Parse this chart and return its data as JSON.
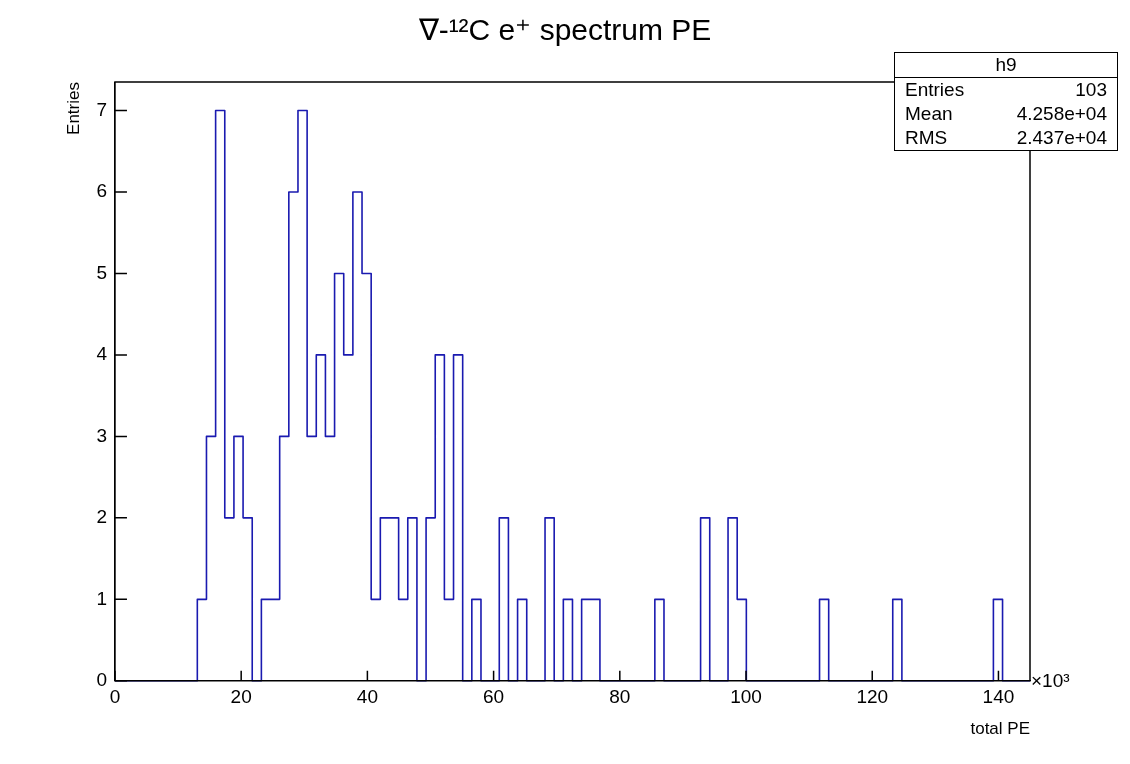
{
  "chart_data": {
    "type": "histogram",
    "title": "∇-¹²C e⁺ spectrum PE",
    "xlabel": "total PE",
    "ylabel": "Entries",
    "color": "#1a1ab0",
    "bins": [
      0,
      1.45,
      2.9,
      4.35,
      5.8,
      7.25,
      8.7,
      10.15,
      11.6,
      13.05,
      14.5,
      15.95,
      17.4,
      18.85,
      20.3,
      21.75,
      23.2,
      24.65,
      26.1,
      27.55,
      29,
      30.45,
      31.9,
      33.35,
      34.8,
      36.25,
      37.7,
      39.15,
      40.6,
      42.05,
      43.5,
      44.95,
      46.4,
      47.85,
      49.3,
      50.75,
      52.2,
      53.65,
      55.1,
      56.55,
      58,
      59.45,
      60.9,
      62.35,
      63.8,
      65.25,
      66.7,
      68.15,
      69.6,
      71.05,
      72.5,
      73.95,
      75.4,
      76.85,
      78.3,
      79.75,
      81.2,
      82.65,
      84.1,
      85.55,
      87,
      88.45,
      89.9,
      91.35,
      92.8,
      94.25,
      95.7,
      97.15,
      98.6,
      100.05,
      101.5,
      102.95,
      104.4,
      105.85,
      107.3,
      108.75,
      110.2,
      111.65,
      113.1,
      114.55,
      116,
      117.45,
      118.9,
      120.35,
      121.8,
      123.25,
      124.7,
      126.15,
      127.6,
      129.05,
      130.5,
      131.95,
      133.4,
      134.85,
      136.3,
      137.75,
      139.2,
      140.65,
      142.1,
      143.55,
      145
    ],
    "values": [
      0,
      0,
      0,
      0,
      0,
      0,
      0,
      0,
      0,
      1,
      3,
      7,
      2,
      3,
      2,
      0,
      1,
      1,
      3,
      6,
      7,
      3,
      4,
      3,
      5,
      4,
      6,
      5,
      1,
      2,
      2,
      1,
      2,
      0,
      2,
      4,
      1,
      4,
      0,
      1,
      0,
      0,
      2,
      0,
      1,
      0,
      0,
      2,
      0,
      1,
      0,
      1,
      1,
      0,
      0,
      0,
      0,
      0,
      0,
      1,
      0,
      0,
      0,
      0,
      2,
      0,
      0,
      2,
      1,
      0,
      0,
      0,
      0,
      0,
      0,
      0,
      0,
      1,
      0,
      0,
      0,
      0,
      0,
      0,
      0,
      1,
      0,
      0,
      0,
      0,
      0,
      0,
      0,
      0,
      0,
      0,
      1,
      0,
      0,
      0
    ],
    "xlim": [
      0,
      145
    ],
    "xticks": [
      0,
      20,
      40,
      60,
      80,
      100,
      120,
      140
    ],
    "ylim": [
      0,
      7.35
    ],
    "yticks": [
      0,
      1,
      2,
      3,
      4,
      5,
      6,
      7
    ],
    "annotations": [
      "h9",
      "Entries",
      "103",
      "Mean",
      "4.258e+04",
      "RMS",
      "2.437e+04",
      "×10³"
    ]
  }
}
